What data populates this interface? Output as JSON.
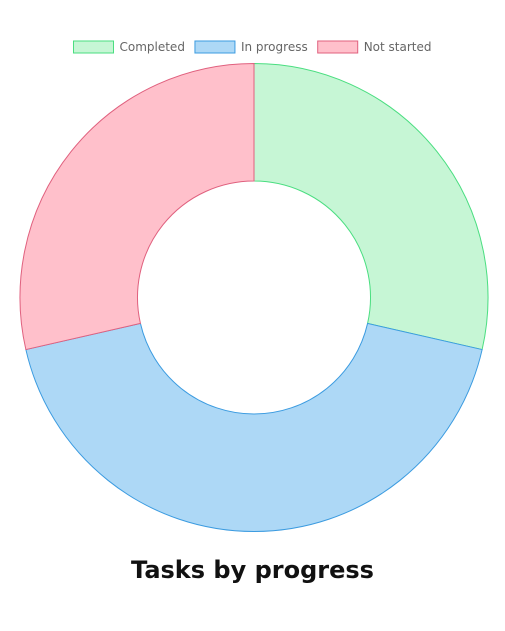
{
  "chart_data": {
    "type": "pie",
    "variant": "doughnut",
    "title": "Tasks by progress",
    "legend_position": "top",
    "categories": [
      "Completed",
      "In progress",
      "Not started"
    ],
    "values": [
      2,
      3,
      2
    ],
    "fill_colors": [
      "#c6f6d5",
      "#add8f6",
      "#ffc0cb"
    ],
    "border_colors": [
      "#4ade80",
      "#3b9be0",
      "#e0607e"
    ]
  }
}
